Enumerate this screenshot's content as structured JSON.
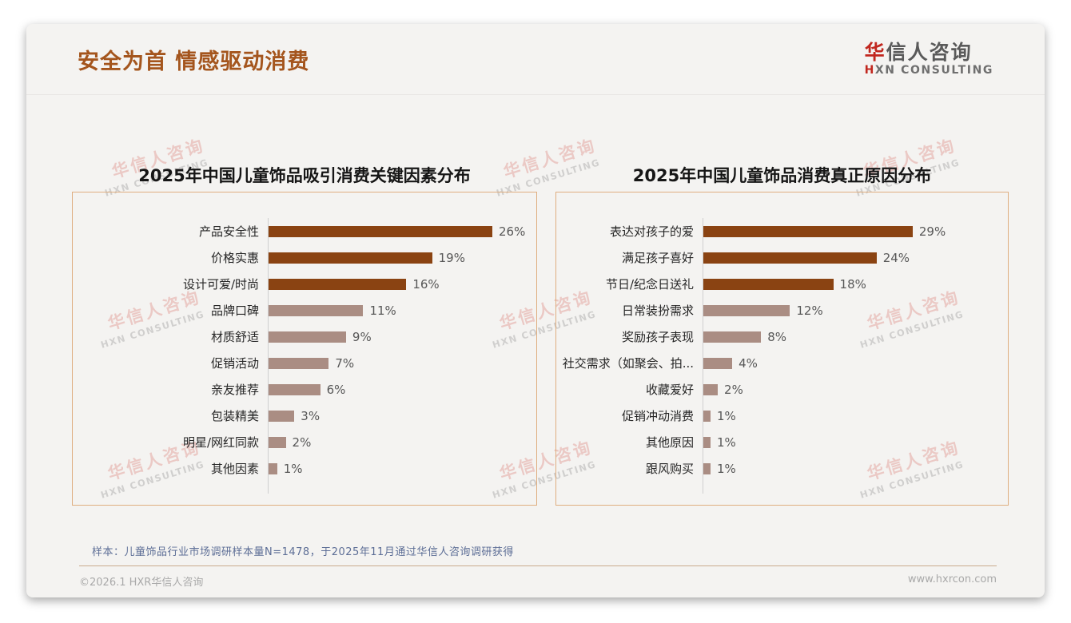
{
  "header": {
    "title": "安全为首 情感驱动消费",
    "logo": {
      "brand_first_char": "华",
      "brand_rest": "信人咨询",
      "subtitle_first": "H",
      "subtitle_rest": "XN CONSULTING",
      "accent_color": "#c1271f",
      "text_color": "#5a5a5a"
    }
  },
  "watermark": {
    "line1": "华信人咨询",
    "line2": "HXN CONSULTING"
  },
  "chart_data": [
    {
      "type": "bar",
      "orientation": "horizontal",
      "title": "2025年中国儿童饰品吸引消费关键因素分布",
      "categories": [
        "产品安全性",
        "价格实惠",
        "设计可爱/时尚",
        "品牌口碑",
        "材质舒适",
        "促销活动",
        "亲友推荐",
        "包装精美",
        "明星/网红同款",
        "其他因素"
      ],
      "values": [
        26,
        19,
        16,
        11,
        9,
        7,
        6,
        3,
        2,
        1
      ],
      "value_labels": [
        "26%",
        "19%",
        "16%",
        "11%",
        "9%",
        "7%",
        "6%",
        "3%",
        "2%",
        "1%"
      ],
      "unit": "%",
      "xlim": [
        0,
        30
      ],
      "grid": false,
      "legend": "none",
      "highlight_top_n": 3,
      "bar_color_primary": "#8a4312",
      "bar_color_secondary": "#aa8d83"
    },
    {
      "type": "bar",
      "orientation": "horizontal",
      "title": "2025年中国儿童饰品消费真正原因分布",
      "categories": [
        "表达对孩子的爱",
        "满足孩子喜好",
        "节日/纪念日送礼",
        "日常装扮需求",
        "奖励孩子表现",
        "社交需求（如聚会、拍...",
        "收藏爱好",
        "促销冲动消费",
        "其他原因",
        "跟风购买"
      ],
      "values": [
        29,
        24,
        18,
        12,
        8,
        4,
        2,
        1,
        1,
        1
      ],
      "value_labels": [
        "29%",
        "24%",
        "18%",
        "12%",
        "8%",
        "4%",
        "2%",
        "1%",
        "1%",
        "1%"
      ],
      "unit": "%",
      "xlim": [
        0,
        32
      ],
      "grid": false,
      "legend": "none",
      "highlight_top_n": 3,
      "bar_color_primary": "#8a4312",
      "bar_color_secondary": "#aa8d83"
    }
  ],
  "footer": {
    "sample_note": "样本：儿童饰品行业市场调研样本量N=1478，于2025年11月通过华信人咨询调研获得",
    "copyright": "©2026.1 HXR华信人咨询",
    "website": "www.hxrcon.com"
  }
}
